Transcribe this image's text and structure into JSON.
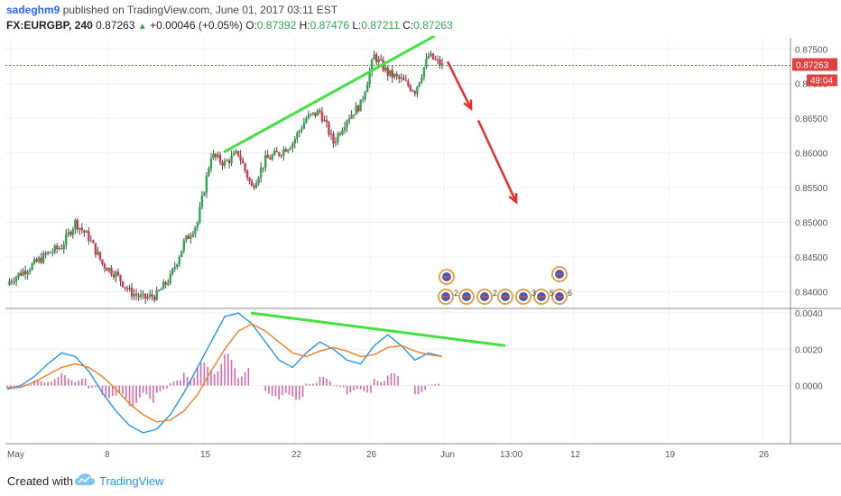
{
  "header": {
    "author": "sadeghm9",
    "published_text": "published on TradingView.com, June 01, 2017 03:11 EST",
    "symbol": "FX:EURGBP, 240",
    "last": "0.87263",
    "change": "+0.00046 (+0.05%)",
    "open_label": "O:",
    "open": "0.87392",
    "high_label": "H:",
    "high": "0.87476",
    "low_label": "L:",
    "low": "0.87211",
    "close_label": "C:",
    "close": "0.87263"
  },
  "footer": {
    "created_with": "Created with",
    "brand": "TradingView"
  },
  "colors": {
    "up": "#2fa84f",
    "down": "#e0324a",
    "trend": "#43e13f",
    "arrow": "#ef2b2b",
    "price_badge": "#e04040"
  },
  "chart_data": [
    {
      "type": "candlestick",
      "title": "FX:EURGBP, 240",
      "y_ticks": [
        0.84,
        0.845,
        0.85,
        0.855,
        0.86,
        0.865,
        0.87,
        0.875
      ],
      "y_tick_labels": [
        "0.84000",
        "0.84500",
        "0.85000",
        "0.85500",
        "0.86000",
        "0.86500",
        "0.87000",
        "0.87500"
      ],
      "ylim": [
        0.8377,
        0.8766
      ],
      "x_ticks": [
        "May",
        "8",
        "15",
        "22",
        "26",
        "Jun",
        "13:00",
        "12",
        "19",
        "26"
      ],
      "last_price_label": "0.87263",
      "countdown_label": "49:04",
      "last_price": 0.87263,
      "close_path": [
        {
          "x": "May 1",
          "y": 0.8413
        },
        {
          "x": "May 2",
          "y": 0.8427
        },
        {
          "x": "May 3",
          "y": 0.844
        },
        {
          "x": "May 4",
          "y": 0.8455
        },
        {
          "x": "May 5",
          "y": 0.8465
        },
        {
          "x": "May 6",
          "y": 0.85
        },
        {
          "x": "May 7",
          "y": 0.8478
        },
        {
          "x": "May 8",
          "y": 0.844
        },
        {
          "x": "May 9",
          "y": 0.8425
        },
        {
          "x": "May 10",
          "y": 0.84
        },
        {
          "x": "May 11",
          "y": 0.839
        },
        {
          "x": "May 12",
          "y": 0.8395
        },
        {
          "x": "May 13",
          "y": 0.842
        },
        {
          "x": "May 14",
          "y": 0.847
        },
        {
          "x": "May 15",
          "y": 0.85
        },
        {
          "x": "May 16",
          "y": 0.8597
        },
        {
          "x": "May 17",
          "y": 0.8585
        },
        {
          "x": "May 18",
          "y": 0.86
        },
        {
          "x": "May 19",
          "y": 0.855
        },
        {
          "x": "May 20",
          "y": 0.859
        },
        {
          "x": "May 21",
          "y": 0.86
        },
        {
          "x": "May 22",
          "y": 0.8615
        },
        {
          "x": "May 23",
          "y": 0.865
        },
        {
          "x": "May 24",
          "y": 0.866
        },
        {
          "x": "May 25",
          "y": 0.8615
        },
        {
          "x": "May 26",
          "y": 0.865
        },
        {
          "x": "May 27",
          "y": 0.867
        },
        {
          "x": "May 28",
          "y": 0.874
        },
        {
          "x": "May 29",
          "y": 0.8715
        },
        {
          "x": "May 30",
          "y": 0.8705
        },
        {
          "x": "May 31",
          "y": 0.869
        },
        {
          "x": "Jun 1",
          "y": 0.874
        },
        {
          "x": "Jun 1b",
          "y": 0.8726
        }
      ],
      "annotations": {
        "upper_trendline": [
          {
            "x": "May 16",
            "y": 0.8601
          },
          {
            "x": "May 28",
            "y": 0.8769
          }
        ],
        "projected_arrow_1": [
          {
            "x": "Jun 1",
            "y": 0.8732
          },
          {
            "x": "Jun 2",
            "y": 0.8664
          }
        ],
        "projected_arrow_2": [
          {
            "x": "Jun 3",
            "y": 0.8647
          },
          {
            "x": "Jun 6",
            "y": 0.8529
          }
        ]
      }
    },
    {
      "type": "macd",
      "y_ticks": [
        0.0,
        0.002,
        0.004
      ],
      "y_tick_labels": [
        "0.0000",
        "0.0020",
        "0.0040"
      ],
      "ylim": [
        -0.0032,
        0.0042
      ],
      "macd_line": [
        -0.0002,
        0.0,
        0.0005,
        0.0012,
        0.0018,
        0.0016,
        0.0008,
        -0.0004,
        -0.0014,
        -0.0022,
        -0.0026,
        -0.0024,
        -0.0016,
        -0.0004,
        0.001,
        0.0024,
        0.0038,
        0.004,
        0.0034,
        0.0024,
        0.0014,
        0.001,
        0.0018,
        0.0024,
        0.002,
        0.0014,
        0.0012,
        0.0022,
        0.0028,
        0.0022,
        0.0014,
        0.0018,
        0.0016
      ],
      "signal_line": [
        -0.0001,
        -0.0001,
        0.0002,
        0.0006,
        0.001,
        0.0012,
        0.001,
        0.0005,
        -0.0002,
        -0.001,
        -0.0016,
        -0.002,
        -0.0019,
        -0.0014,
        -0.0005,
        0.0008,
        0.002,
        0.003,
        0.0034,
        0.003,
        0.0024,
        0.0018,
        0.0016,
        0.0019,
        0.0021,
        0.0019,
        0.0016,
        0.0017,
        0.0021,
        0.0022,
        0.0019,
        0.0017,
        0.0016
      ],
      "histogram": [
        -0.0002,
        0.0001,
        0.0003,
        0.0005,
        0.0007,
        0.0004,
        -0.0002,
        -0.0007,
        -0.001,
        -0.0012,
        -0.001,
        -0.0004,
        0.0003,
        0.0009,
        0.0013,
        0.0016,
        0.0018,
        0.001,
        0.0,
        -0.0006,
        -0.001,
        -0.0008,
        0.0002,
        0.0005,
        -0.0001,
        -0.0005,
        -0.0004,
        0.0005,
        0.0007,
        0.0,
        -0.0005,
        0.0001,
        0.0
      ],
      "annotations": {
        "divergence_line": [
          {
            "x": "May 18",
            "y": 0.004
          },
          {
            "x": "Jun 4",
            "y": 0.0022
          }
        ]
      }
    }
  ]
}
